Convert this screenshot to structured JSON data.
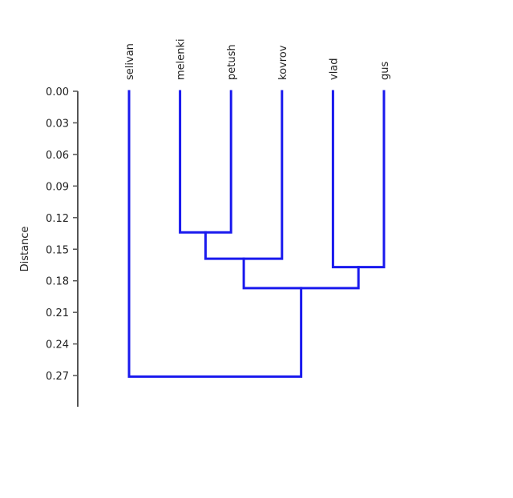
{
  "chart_data": {
    "type": "dendrogram",
    "ylabel": "Distance",
    "y_ticks": [
      "0.00",
      "0.03",
      "0.06",
      "0.09",
      "0.12",
      "0.15",
      "0.18",
      "0.21",
      "0.24",
      "0.27"
    ],
    "ylim": [
      0,
      0.3
    ],
    "leaves": [
      "selivan",
      "melenki",
      "petush",
      "kovrov",
      "vlad",
      "gus"
    ],
    "merges": [
      {
        "left": "melenki",
        "right": "petush",
        "height": 0.134
      },
      {
        "left": "melenki+petush",
        "right": "kovrov",
        "height": 0.159
      },
      {
        "left": "vlad",
        "right": "gus",
        "height": 0.167
      },
      {
        "left": "melenki+petush+kovrov",
        "right": "vlad+gus",
        "height": 0.187
      },
      {
        "left": "selivan",
        "right": "melenki+petush+kovrov+vlad+gus",
        "height": 0.271
      }
    ],
    "colors": {
      "branch": "#1a1aee",
      "axis": "#555555"
    },
    "grid": false
  }
}
